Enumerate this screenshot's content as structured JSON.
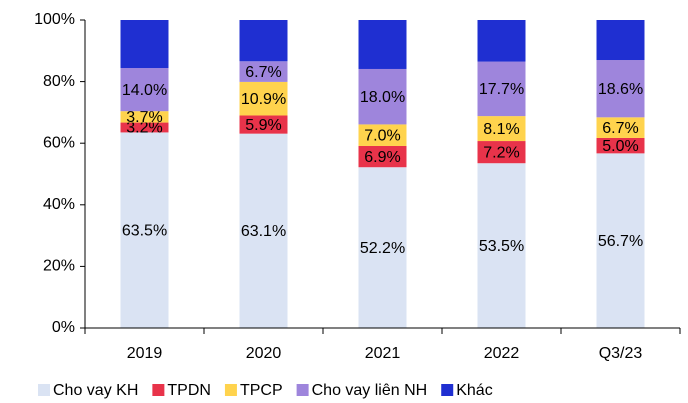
{
  "chart_data": {
    "type": "stacked_bar",
    "categories": [
      "2019",
      "2020",
      "2021",
      "2022",
      "Q3/23"
    ],
    "series": [
      {
        "name": "Cho vay KH",
        "color": "#dae3f3",
        "values": [
          63.5,
          63.1,
          52.2,
          53.5,
          56.7
        ],
        "value_labels": [
          "63.5%",
          "63.1%",
          "52.2%",
          "53.5%",
          "56.7%"
        ]
      },
      {
        "name": "TPDN",
        "color": "#e8334a",
        "values": [
          3.2,
          5.9,
          6.9,
          7.2,
          5.0
        ],
        "value_labels": [
          "3.2%",
          "5.9%",
          "6.9%",
          "7.2%",
          "5.0%"
        ]
      },
      {
        "name": "TPCP",
        "color": "#ffd34d",
        "values": [
          3.7,
          10.9,
          7.0,
          8.1,
          6.7
        ],
        "value_labels": [
          "3.7%",
          "10.9%",
          "7.0%",
          "8.1%",
          "6.7%"
        ]
      },
      {
        "name": "Cho vay liên NH",
        "color": "#9e85dc",
        "values": [
          14.0,
          6.7,
          18.0,
          17.7,
          18.6
        ],
        "value_labels": [
          "14.0%",
          "6.7%",
          "18.0%",
          "17.7%",
          "18.6%"
        ]
      },
      {
        "name": "Khác",
        "color": "#1f2fd1",
        "values": [
          15.6,
          13.4,
          15.9,
          13.5,
          13.0
        ]
      }
    ],
    "ylim": [
      0,
      100
    ],
    "yticks": [
      {
        "value": 0,
        "label": "0%"
      },
      {
        "value": 20,
        "label": "20%"
      },
      {
        "value": 40,
        "label": "40%"
      },
      {
        "value": 60,
        "label": "60%"
      },
      {
        "value": 80,
        "label": "80%"
      },
      {
        "value": 100,
        "label": "100%"
      }
    ],
    "legend": "bottom"
  }
}
